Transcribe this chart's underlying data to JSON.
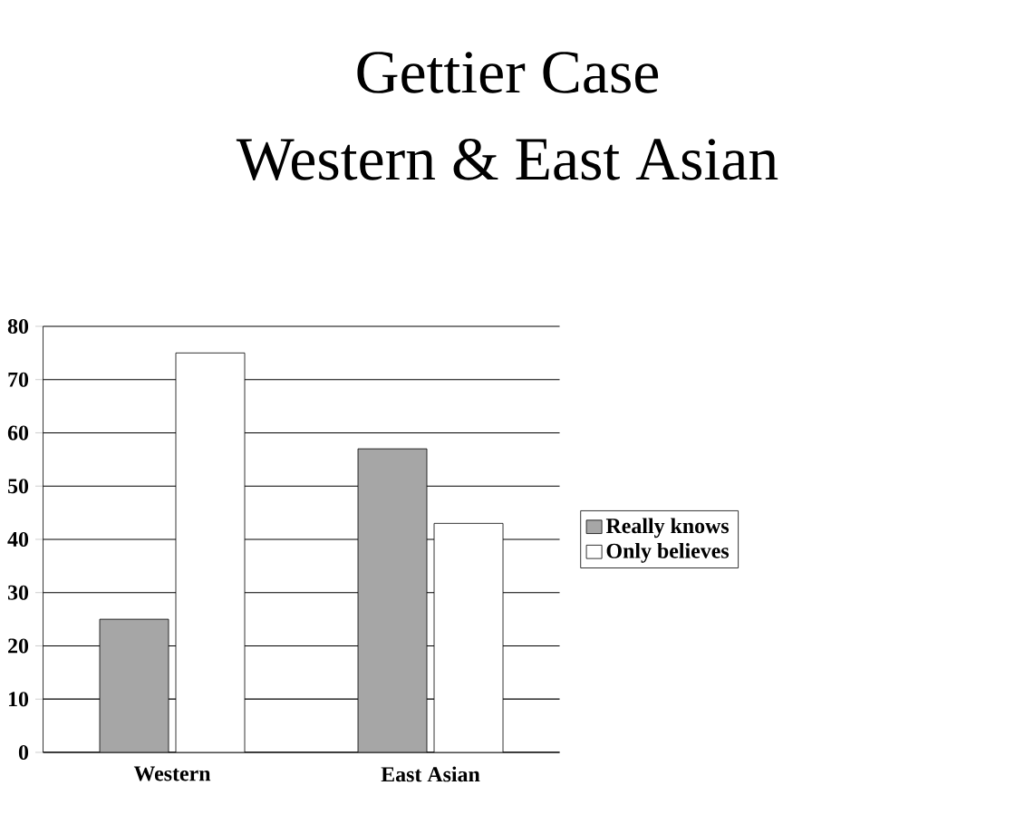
{
  "chart_data": {
    "type": "bar",
    "title": "Gettier Case",
    "subtitle": "Western & East Asian",
    "categories": [
      "Western",
      "East Asian"
    ],
    "series": [
      {
        "name": "Really knows",
        "color": "#a6a6a6",
        "values": [
          25,
          57
        ]
      },
      {
        "name": "Only believes",
        "color": "#ffffff",
        "values": [
          75,
          43
        ]
      }
    ],
    "ylim": [
      0,
      80
    ],
    "yticks": [
      0,
      10,
      20,
      30,
      40,
      50,
      60,
      70,
      80
    ],
    "grid": "y",
    "legend": "right"
  }
}
